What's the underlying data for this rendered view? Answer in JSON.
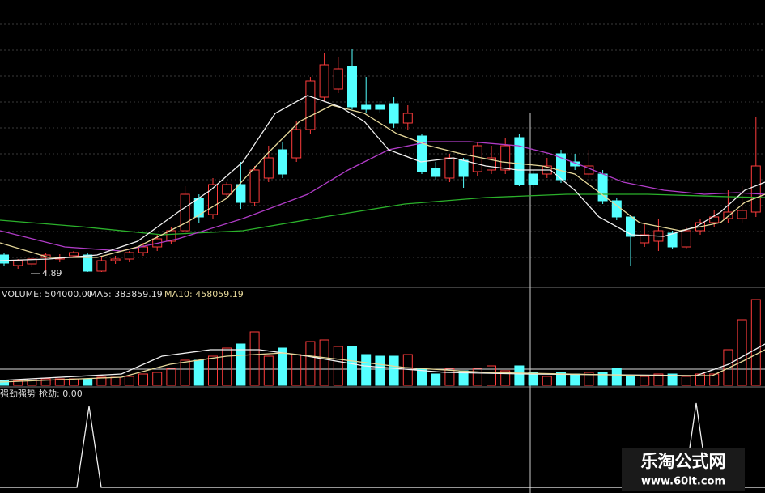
{
  "chart_data": {
    "type": "candlestick",
    "open": [
      5.33,
      5.07,
      5.11,
      5.27,
      5.23,
      5.31,
      5.33,
      4.93,
      5.19,
      5.23,
      5.39,
      5.53,
      5.67,
      5.93,
      6.73,
      6.33,
      6.83,
      7.07,
      6.63,
      7.23,
      7.93,
      7.73,
      8.43,
      9.23,
      9.43,
      9.99,
      9.03,
      9.03,
      9.07,
      8.59,
      8.27,
      7.47,
      7.23,
      7.67,
      7.39,
      7.43,
      7.43,
      8.23,
      7.33,
      7.33,
      7.83,
      7.63,
      7.33,
      7.33,
      6.67,
      6.27,
      5.63,
      5.67,
      5.87,
      5.53,
      5.93,
      6.13,
      6.23,
      6.23,
      6.39
    ],
    "high": [
      5.39,
      5.23,
      5.27,
      5.37,
      5.35,
      5.43,
      5.39,
      5.27,
      5.31,
      5.43,
      5.63,
      5.83,
      6.03,
      7.03,
      6.83,
      7.23,
      7.13,
      7.63,
      7.53,
      8.03,
      8.13,
      8.63,
      9.73,
      10.33,
      10.23,
      10.43,
      9.73,
      9.13,
      9.23,
      9.03,
      8.33,
      7.63,
      7.83,
      7.73,
      8.13,
      8.03,
      8.23,
      8.33,
      7.43,
      7.73,
      7.93,
      7.83,
      7.93,
      7.43,
      6.73,
      6.33,
      6.13,
      6.23,
      5.93,
      6.03,
      6.23,
      6.43,
      6.93,
      7.03,
      8.73
    ],
    "low": [
      5.07,
      4.99,
      5.03,
      4.89,
      5.15,
      5.27,
      4.91,
      4.91,
      5.11,
      5.15,
      5.31,
      5.43,
      5.59,
      5.83,
      6.13,
      6.23,
      6.73,
      6.47,
      6.53,
      7.13,
      7.23,
      7.63,
      8.33,
      9.13,
      9.33,
      8.93,
      8.83,
      8.83,
      8.47,
      8.43,
      7.33,
      7.19,
      7.13,
      6.99,
      7.27,
      7.33,
      7.33,
      7.03,
      6.99,
      7.23,
      7.11,
      7.43,
      7.23,
      6.59,
      6.19,
      5.07,
      5.53,
      5.43,
      5.47,
      5.47,
      5.83,
      6.03,
      6.13,
      6.13,
      6.27
    ],
    "close": [
      5.13,
      5.19,
      5.23,
      5.33,
      5.27,
      5.39,
      4.93,
      5.19,
      5.23,
      5.39,
      5.53,
      5.73,
      5.93,
      6.83,
      6.27,
      7.07,
      7.07,
      6.63,
      7.43,
      7.73,
      7.33,
      8.43,
      9.63,
      10.03,
      9.93,
      8.99,
      8.93,
      8.93,
      8.59,
      8.83,
      7.39,
      7.27,
      7.73,
      7.27,
      8.03,
      7.73,
      8.03,
      7.07,
      7.07,
      7.53,
      7.19,
      7.53,
      7.53,
      6.67,
      6.27,
      5.79,
      5.83,
      5.93,
      5.53,
      5.93,
      6.13,
      6.27,
      6.39,
      6.43,
      7.53
    ],
    "volume": [
      60000,
      60000,
      80000,
      80000,
      80000,
      80000,
      80000,
      100000,
      100000,
      110000,
      140000,
      160000,
      210000,
      310000,
      310000,
      360000,
      460000,
      510000,
      660000,
      360000,
      460000,
      380000,
      540000,
      560000,
      480000,
      480000,
      380000,
      360000,
      360000,
      380000,
      210000,
      140000,
      210000,
      180000,
      210000,
      240000,
      180000,
      240000,
      160000,
      110000,
      160000,
      140000,
      160000,
      160000,
      210000,
      110000,
      110000,
      140000,
      140000,
      110000,
      140000,
      140000,
      440000,
      810000,
      1060000
    ],
    "low_annotation": "4.89",
    "volume_label": "VOLUME: 504000.00",
    "ma5_label": "MA5: 383859.19",
    "ma10_label": "MA10: 458059.19",
    "indicator_name": "强劲强势",
    "indicator_value": "抢劫: 0.00",
    "up_color": "#ff3c3c",
    "down_color": "#54ffff"
  },
  "watermark": {
    "title": "乐淘公式网",
    "url": "www.60lt.com"
  }
}
